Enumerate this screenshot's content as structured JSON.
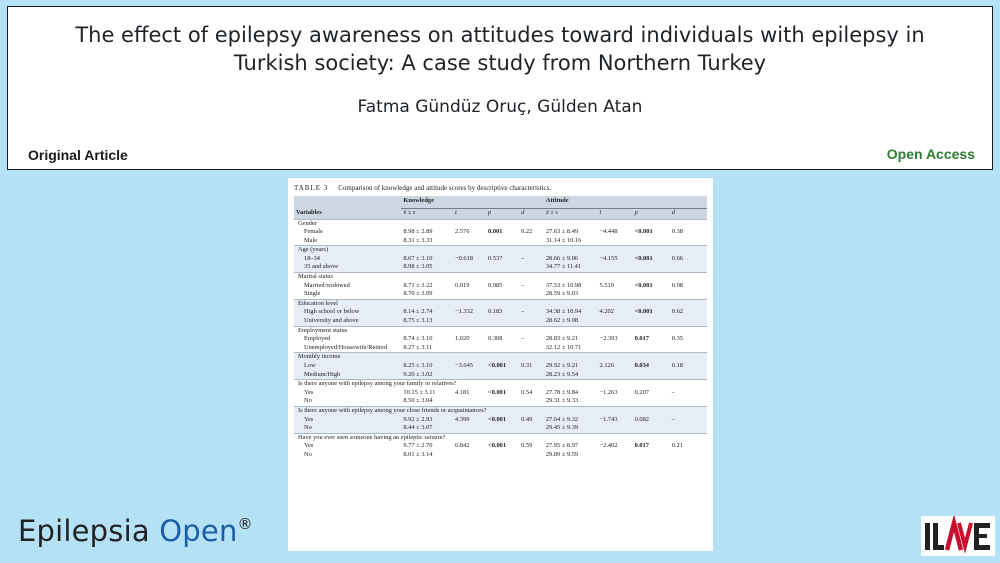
{
  "header": {
    "title_line1": "The effect of epilepsy awareness on attitudes toward individuals with epilepsy in",
    "title_line2": "Turkish society: A case study from Northern Turkey",
    "authors": "Fatma Gündüz Oruç, Gülden Atan",
    "article_type": "Original Article",
    "access_label": "Open Access"
  },
  "table": {
    "label": "TABLE 3",
    "caption": "Comparison of knowledge and attitude scores by descriptive characteristics.",
    "group_headers": {
      "knowledge": "Knowledge",
      "attitude": "Attitude"
    },
    "columns": {
      "variables": "Variables",
      "mean_sd": "x̄ ± s",
      "t": "t",
      "p": "p",
      "d": "d"
    },
    "groups": [
      {
        "label": "Gender",
        "rows": [
          {
            "name": "Female",
            "k_mean": "8.98 ± 2.89",
            "k_t": "2.576",
            "k_p": "0.001",
            "k_d": "0.22",
            "a_mean": "27.63 ± 8.49",
            "a_t": "−4.448",
            "a_p": "<0.001",
            "a_d": "0.38"
          },
          {
            "name": "Male",
            "k_mean": "8.31 ± 3.33",
            "k_t": "",
            "k_p": "",
            "k_d": "",
            "a_mean": "31.14 ± 10.16",
            "a_t": "",
            "a_p": "",
            "a_d": ""
          }
        ]
      },
      {
        "label": "Age (years)",
        "rows": [
          {
            "name": "18–34",
            "k_mean": "8.67 ± 3.10",
            "k_t": "−0.618",
            "k_p": "0.537",
            "k_d": "–",
            "a_mean": "28.66 ± 9.06",
            "a_t": "−4.155",
            "a_p": "<0.001",
            "a_d": "0.66"
          },
          {
            "name": "35 and above",
            "k_mean": "8.98 ± 3.05",
            "k_t": "",
            "k_p": "",
            "k_d": "",
            "a_mean": "34.77 ± 11.41",
            "a_t": "",
            "a_p": "",
            "a_d": ""
          }
        ]
      },
      {
        "label": "Marital status",
        "rows": [
          {
            "name": "Married/widowed",
            "k_mean": "8.71 ± 3.22",
            "k_t": "0.019",
            "k_p": "0.985",
            "k_d": "–",
            "a_mean": "37.53 ± 10.98",
            "a_t": "5.519",
            "a_p": "<0.001",
            "a_d": "0.98"
          },
          {
            "name": "Single",
            "k_mean": "8.70 ± 3.09",
            "k_t": "",
            "k_p": "",
            "k_d": "",
            "a_mean": "28.59 ± 9.03",
            "a_t": "",
            "a_p": "",
            "a_d": ""
          }
        ]
      },
      {
        "label": "Education level",
        "rows": [
          {
            "name": "High school or below",
            "k_mean": "8.14 ± 2.74",
            "k_t": "−1.332",
            "k_p": "0.183",
            "k_d": "–",
            "a_mean": "34.38 ± 10.94",
            "a_t": "4.202",
            "a_p": "<0.001",
            "a_d": "0.62"
          },
          {
            "name": "University and above",
            "k_mean": "8.75 ± 3.13",
            "k_t": "",
            "k_p": "",
            "k_d": "",
            "a_mean": "28.62 ± 9.08",
            "a_t": "",
            "a_p": "",
            "a_d": ""
          }
        ]
      },
      {
        "label": "Employment status",
        "rows": [
          {
            "name": "Employed",
            "k_mean": "8.74 ± 3.10",
            "k_t": "1.020",
            "k_p": "0.308",
            "k_d": "–",
            "a_mean": "28.83 ± 9.21",
            "a_t": "−2.393",
            "a_p": "0.017",
            "a_d": "0.35"
          },
          {
            "name": "Unemployed/Housewife/Retired",
            "k_mean": "8.27 ± 3.11",
            "k_t": "",
            "k_p": "",
            "k_d": "",
            "a_mean": "32.12 ± 10.71",
            "a_t": "",
            "a_p": "",
            "a_d": ""
          }
        ]
      },
      {
        "label": "Monthly income",
        "rows": [
          {
            "name": "Low",
            "k_mean": "8.25 ± 3.10",
            "k_t": "−3.645",
            "k_p": "<0.001",
            "k_d": "0.31",
            "a_mean": "29.92 ± 9.21",
            "a_t": "2.126",
            "a_p": "0.034",
            "a_d": "0.18"
          },
          {
            "name": "Medium/High",
            "k_mean": "9.20 ± 3.02",
            "k_t": "",
            "k_p": "",
            "k_d": "",
            "a_mean": "28.23 ± 9.54",
            "a_t": "",
            "a_p": "",
            "a_d": ""
          }
        ]
      },
      {
        "label": "Is there anyone with epilepsy among your family or relatives?",
        "rows": [
          {
            "name": "Yes",
            "k_mean": "10.15 ± 3.11",
            "k_t": "4.181",
            "k_p": "<0.001",
            "k_d": "0.54",
            "a_mean": "27.78 ± 9.84",
            "a_t": "−1.263",
            "a_p": "0.207",
            "a_d": "–"
          },
          {
            "name": "No",
            "k_mean": "8.50 ± 3.04",
            "k_t": "",
            "k_p": "",
            "k_d": "",
            "a_mean": "29.31 ± 9.33",
            "a_t": "",
            "a_p": "",
            "a_d": ""
          }
        ]
      },
      {
        "label": "Is there anyone with epilepsy among your close friends or acquaintances?",
        "rows": [
          {
            "name": "Yes",
            "k_mean": "9.92 ± 2.93",
            "k_t": "4.399",
            "k_p": "<0.001",
            "k_d": "0.49",
            "a_mean": "27.64 ± 9.32",
            "a_t": "−1.743",
            "a_p": "0.082",
            "a_d": "–"
          },
          {
            "name": "No",
            "k_mean": "8.44 ± 3.07",
            "k_t": "",
            "k_p": "",
            "k_d": "",
            "a_mean": "29.45 ± 9.39",
            "a_t": "",
            "a_p": "",
            "a_d": ""
          }
        ]
      },
      {
        "label": "Have you ever seen someone having an epileptic seizure?",
        "rows": [
          {
            "name": "Yes",
            "k_mean": "9.77 ± 2.70",
            "k_t": "6.842",
            "k_p": "<0.001",
            "k_d": "0.59",
            "a_mean": "27.95 ± 8.97",
            "a_t": "−2.402",
            "a_p": "0.017",
            "a_d": "0.21"
          },
          {
            "name": "No",
            "k_mean": "8.01 ± 3.14",
            "k_t": "",
            "k_p": "",
            "k_d": "",
            "a_mean": "29.89 ± 9.59",
            "a_t": "",
            "a_p": "",
            "a_d": ""
          }
        ]
      }
    ]
  },
  "footer": {
    "journal_part1": "Epilepsia",
    "journal_part2": "Open",
    "registered_mark": "®",
    "logo_text": "ILAE"
  },
  "colors": {
    "background": "#b5e1f7",
    "open_access_green": "#2e7d32",
    "journal_blue": "#1b5ea8",
    "table_header_fill": "#cdd7e4",
    "table_row_shade": "#e6edf5",
    "logo_red": "#c8102e"
  }
}
